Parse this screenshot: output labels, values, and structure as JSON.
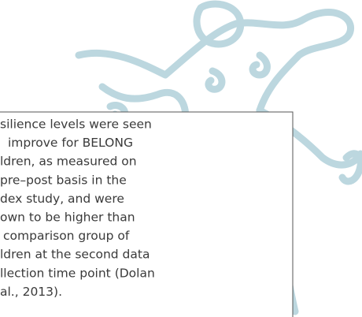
{
  "text_box": {
    "lines": [
      "silience levels were seen",
      "improve for BELONG",
      "ldren, as measured on",
      "pre–post basis in the",
      "dex study, and were",
      "own to be higher than",
      "comparison group of",
      "ldren at the second data",
      "llection time point (Dolan",
      "al., 2013)."
    ]
  }
}
